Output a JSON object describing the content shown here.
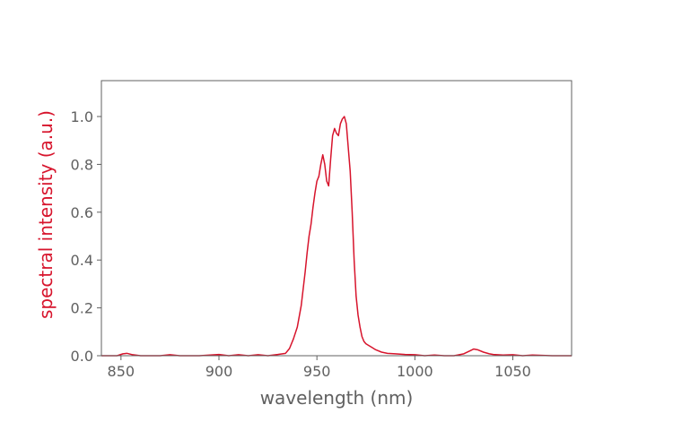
{
  "chart_data": {
    "type": "line",
    "title": "",
    "xlabel": "wavelength (nm)",
    "ylabel": "spectral intensity (a.u.)",
    "xlim": [
      840,
      1080
    ],
    "ylim": [
      0,
      1.15
    ],
    "xticks": [
      850,
      900,
      950,
      1000,
      1050
    ],
    "xtick_labels": [
      "850",
      "900",
      "950",
      "1000",
      "1050"
    ],
    "yticks": [
      0.0,
      0.2,
      0.4,
      0.6,
      0.8,
      1.0
    ],
    "ytick_labels": [
      "0.0",
      "0.2",
      "0.4",
      "0.6",
      "0.8",
      "1.0"
    ],
    "grid": false,
    "colors": {
      "series": "#d7142c",
      "ylabel": "#d7142c",
      "axis_text": "#606060",
      "spine": "#606060"
    },
    "series": [
      {
        "x": [
          840,
          848,
          851,
          853,
          856,
          860,
          870,
          875,
          880,
          890,
          900,
          905,
          910,
          915,
          920,
          925,
          930,
          934,
          936,
          938,
          940,
          942,
          944,
          945,
          946,
          947,
          948,
          949,
          950,
          951,
          952,
          953,
          954,
          955,
          956,
          957,
          958,
          959,
          960,
          961,
          962,
          963,
          964,
          965,
          966,
          967,
          968,
          969,
          970,
          971,
          972,
          973,
          974,
          975,
          976,
          978,
          980,
          983,
          986,
          990,
          995,
          1000,
          1005,
          1010,
          1015,
          1020,
          1025,
          1028,
          1030,
          1032,
          1035,
          1038,
          1040,
          1045,
          1050,
          1055,
          1060,
          1070,
          1080
        ],
        "y": [
          0.0,
          0.0,
          0.008,
          0.01,
          0.004,
          0.0,
          0.0,
          0.004,
          0.0,
          0.0,
          0.005,
          0.0,
          0.004,
          0.0,
          0.004,
          0.0,
          0.005,
          0.01,
          0.03,
          0.07,
          0.12,
          0.21,
          0.35,
          0.43,
          0.5,
          0.55,
          0.62,
          0.68,
          0.73,
          0.75,
          0.8,
          0.84,
          0.8,
          0.73,
          0.71,
          0.82,
          0.92,
          0.95,
          0.93,
          0.92,
          0.97,
          0.99,
          1.0,
          0.97,
          0.87,
          0.77,
          0.6,
          0.4,
          0.25,
          0.17,
          0.12,
          0.08,
          0.06,
          0.05,
          0.045,
          0.035,
          0.025,
          0.015,
          0.01,
          0.008,
          0.005,
          0.004,
          0.0,
          0.003,
          0.0,
          0.0,
          0.008,
          0.02,
          0.028,
          0.025,
          0.015,
          0.008,
          0.005,
          0.003,
          0.004,
          0.0,
          0.003,
          0.0,
          0.0
        ]
      }
    ]
  }
}
